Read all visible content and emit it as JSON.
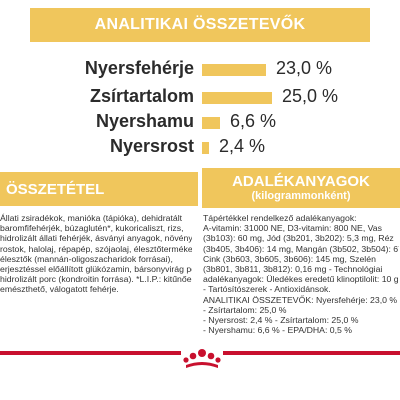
{
  "header": {
    "title": "ANALITIKAI ÖSSZETEVŐK"
  },
  "metrics": [
    {
      "label": "Nyersfehérje",
      "value": "23,0 %",
      "fraction": 0.23,
      "color": "#f0c65c"
    },
    {
      "label": "Zsírtartalom",
      "value": "25,0 %",
      "fraction": 0.25,
      "color": "#f0c65c"
    },
    {
      "label": "Nyershamu",
      "value": "6,6 %",
      "fraction": 0.066,
      "color": "#f0c65c"
    },
    {
      "label": "Nyersrost",
      "value": "2,4 %",
      "fraction": 0.024,
      "color": "#f0c65c"
    }
  ],
  "composition": {
    "title": "ÖSSZETÉTEL",
    "lines": [
      "Állati zsiradékok, maniókа (tápióka), dehidratált",
      "baromfifehérjék, búzaglutén*, kukoricaliszt, rizs,",
      "hidrolizált állati fehérjék, ásványi anyagok, növényi",
      "rostok, halolaj, répapép, szójaolaj, élesztőtermékek,",
      "élesztők (mannán-oligoszacharidok forrásai),",
      "erjesztéssel előállított glükózamin, bársonyvirág por,",
      "hidrolizált porc (kondroitin forrása). *L.I.P.: kitűnően",
      "emészthető, válogatott fehérje."
    ]
  },
  "additives": {
    "title": "ADALÉKANYAGOK",
    "subtitle": "(kilogrammonként)",
    "lines": [
      "Tápértékkel rendelkező adalékanyagok:",
      "A-vitamin: 31000 NE, D3-vitamin: 800 NE, Vas",
      "(3b103): 60 mg, Jód (3b201, 3b202): 5,3 mg, Réz",
      "(3b405, 3b406): 14 mg, Mangán (3b502, 3b504): 67 mg,",
      "Cink (3b603, 3b605, 3b606): 145 mg, Szelén",
      "(3b801, 3b811, 3b812): 0,16 mg - Technológiai",
      "adalékanyagok: Üledékes eredetű klinoptilolit: 10 g",
      "- Tartósítószerek - Antioxidánsok.",
      "ANALITIKAI ÖSSZETEVŐK: Nyersfehérje: 23,0 %",
      "- Zsírtartalom: 25,0 %",
      "- Nyersrost: 2,4 % - Zsírtartalom: 25,0 %",
      "- Nyershamu: 6,6 % - EPA/DHA: 0,5 %"
    ]
  },
  "colors": {
    "accent": "#f0c65c",
    "text": "#2b2b2b",
    "brand_red": "#c8102e"
  },
  "logo": {
    "icon": "royal-canin-crown-icon"
  }
}
